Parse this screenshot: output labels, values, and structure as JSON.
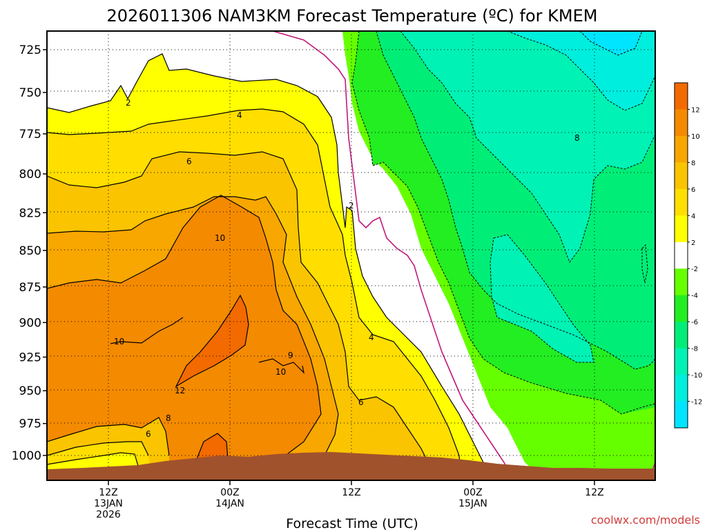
{
  "chart_data": {
    "type": "contour",
    "title": "2026011306 NAM3KM Forecast Temperature (ºC) for KMEM",
    "xlabel": "Forecast Time (UTC)",
    "ylabel": "",
    "watermark": "coolwx.com/models",
    "y_axis": {
      "scale": "pressure (inverted)",
      "ticks": [
        725,
        750,
        775,
        800,
        825,
        850,
        875,
        900,
        925,
        950,
        975,
        1000
      ]
    },
    "x_axis": {
      "ticks": [
        {
          "time": "2026-01-13T12Z",
          "lines": [
            "12Z",
            "13JAN",
            "2026"
          ]
        },
        {
          "time": "2026-01-14T00Z",
          "lines": [
            "00Z",
            "14JAN"
          ]
        },
        {
          "time": "2026-01-14T12Z",
          "lines": [
            "12Z"
          ]
        },
        {
          "time": "2026-01-15T00Z",
          "lines": [
            "00Z",
            "15JAN"
          ]
        },
        {
          "time": "2026-01-15T12Z",
          "lines": [
            "12Z"
          ]
        }
      ]
    },
    "grid": true,
    "colorbar": {
      "position": "right",
      "labels": [
        "12",
        "10",
        "8",
        "6",
        "4",
        "2",
        "-2",
        "-4",
        "-6",
        "-8",
        "-10",
        "-12"
      ],
      "colors": [
        "#f26a00",
        "#f48a00",
        "#f8a600",
        "#fbc400",
        "#ffde00",
        "#ffff00",
        "#ffffff",
        "#66ff00",
        "#22ee22",
        "#00ee77",
        "#00f2b4",
        "#00eedd",
        "#00e5ff"
      ]
    },
    "contour_labels": [
      "2",
      "4",
      "6",
      "10",
      "10",
      "10",
      "12",
      "9",
      "8",
      "6",
      "4",
      "2",
      "6",
      "8"
    ],
    "colors": {
      "terrain": "#a0522d",
      "freezing_line": "#c0187a"
    }
  }
}
